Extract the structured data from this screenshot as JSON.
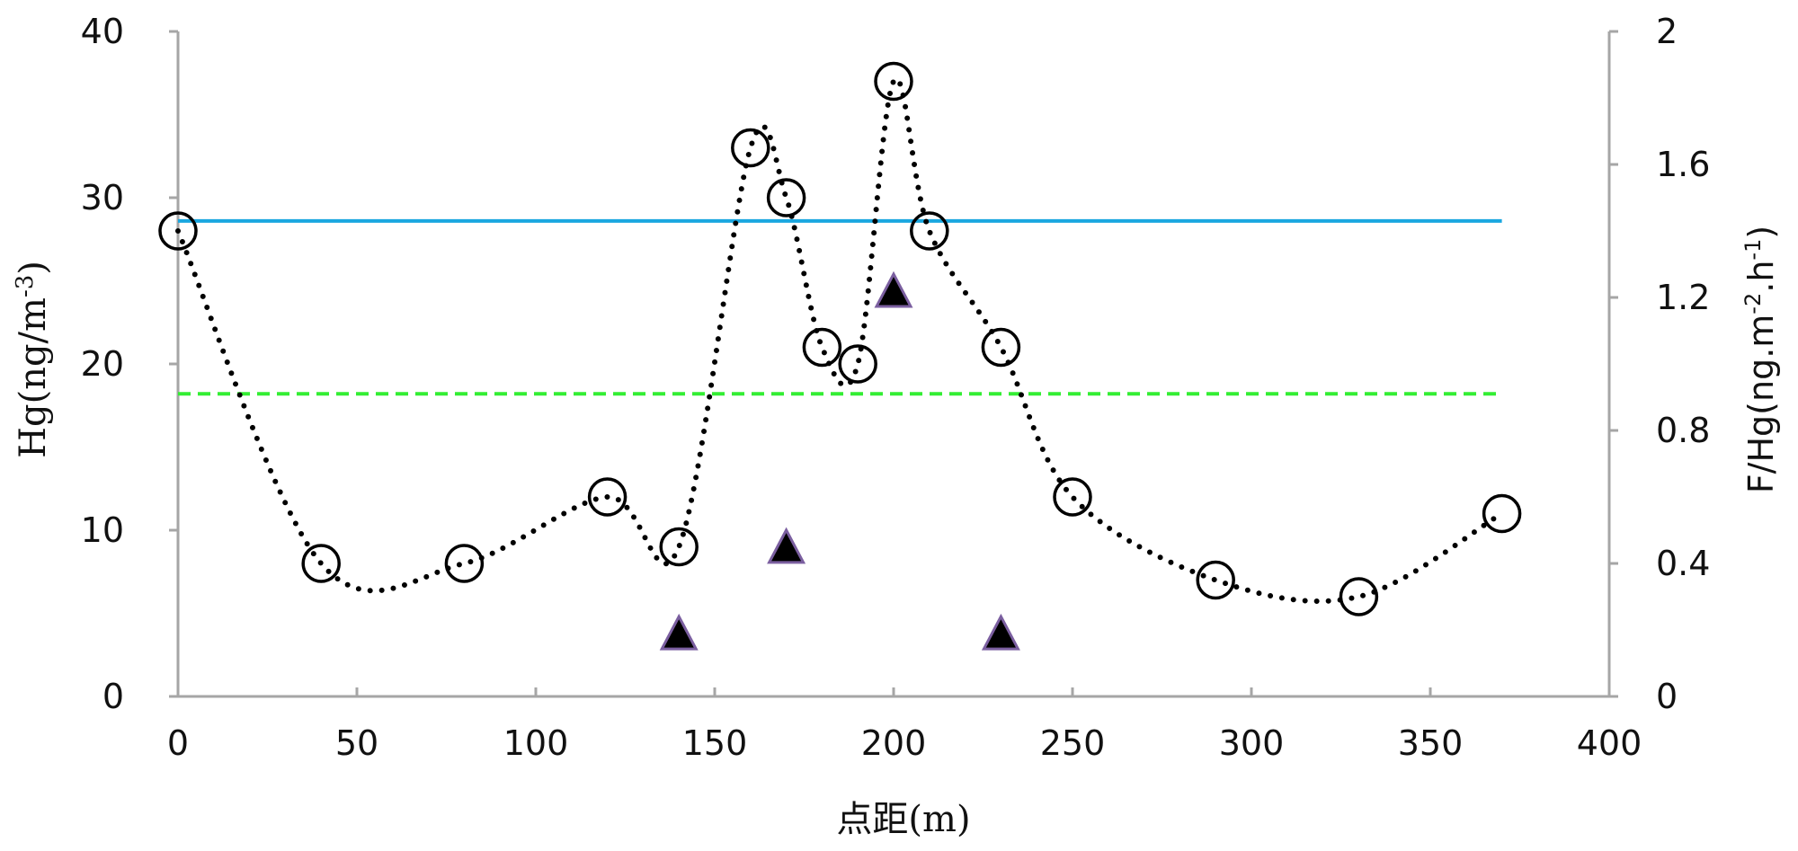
{
  "chart_data": {
    "type": "scatter",
    "xlabel": "点距(m)",
    "xlim": [
      0,
      400
    ],
    "x_ticks": [
      "0",
      "50",
      "100",
      "150",
      "200",
      "250",
      "300",
      "350",
      "400"
    ],
    "y_left": {
      "label_main": "Hg(ng/m",
      "label_sup": "-3",
      "label_end": ")",
      "lim": [
        0,
        40
      ],
      "ticks": [
        "0",
        "10",
        "20",
        "30",
        "40"
      ]
    },
    "y_right": {
      "label_main": "F/Hg(ng.m",
      "label_sup1": "-2",
      "label_mid": ".h",
      "label_sup2": "-1",
      "label_end": ")",
      "lim": [
        0,
        2
      ],
      "ticks": [
        "0",
        "0.4",
        "0.8",
        "1.2",
        "1.6",
        "2"
      ]
    },
    "grid": false,
    "legend": "none",
    "series": [
      {
        "axis": "left",
        "marker": "open-circle",
        "line": "dotted-smooth",
        "color": "#000000",
        "points": [
          {
            "x": 0,
            "y": 28
          },
          {
            "x": 40,
            "y": 8
          },
          {
            "x": 80,
            "y": 8
          },
          {
            "x": 120,
            "y": 12
          },
          {
            "x": 140,
            "y": 9
          },
          {
            "x": 160,
            "y": 33
          },
          {
            "x": 170,
            "y": 30
          },
          {
            "x": 180,
            "y": 21
          },
          {
            "x": 190,
            "y": 20
          },
          {
            "x": 200,
            "y": 37
          },
          {
            "x": 210,
            "y": 28
          },
          {
            "x": 230,
            "y": 21
          },
          {
            "x": 250,
            "y": 12
          },
          {
            "x": 290,
            "y": 7
          },
          {
            "x": 330,
            "y": 6
          },
          {
            "x": 370,
            "y": 11
          }
        ]
      },
      {
        "axis": "right",
        "marker": "filled-triangle",
        "color": "#000000",
        "edge_color": "#7b5fa0",
        "points": [
          {
            "x": 140,
            "y": 0.18
          },
          {
            "x": 170,
            "y": 0.44
          },
          {
            "x": 200,
            "y": 1.21
          },
          {
            "x": 230,
            "y": 0.18
          }
        ]
      }
    ],
    "reference_lines": [
      {
        "axis": "left",
        "y": 28.6,
        "style": "solid",
        "color": "#1aa7e0",
        "x_from": 0,
        "x_to": 370
      },
      {
        "axis": "left",
        "y": 18.2,
        "style": "dashed",
        "color": "#33ee33",
        "x_from": 0,
        "x_to": 370
      }
    ]
  }
}
